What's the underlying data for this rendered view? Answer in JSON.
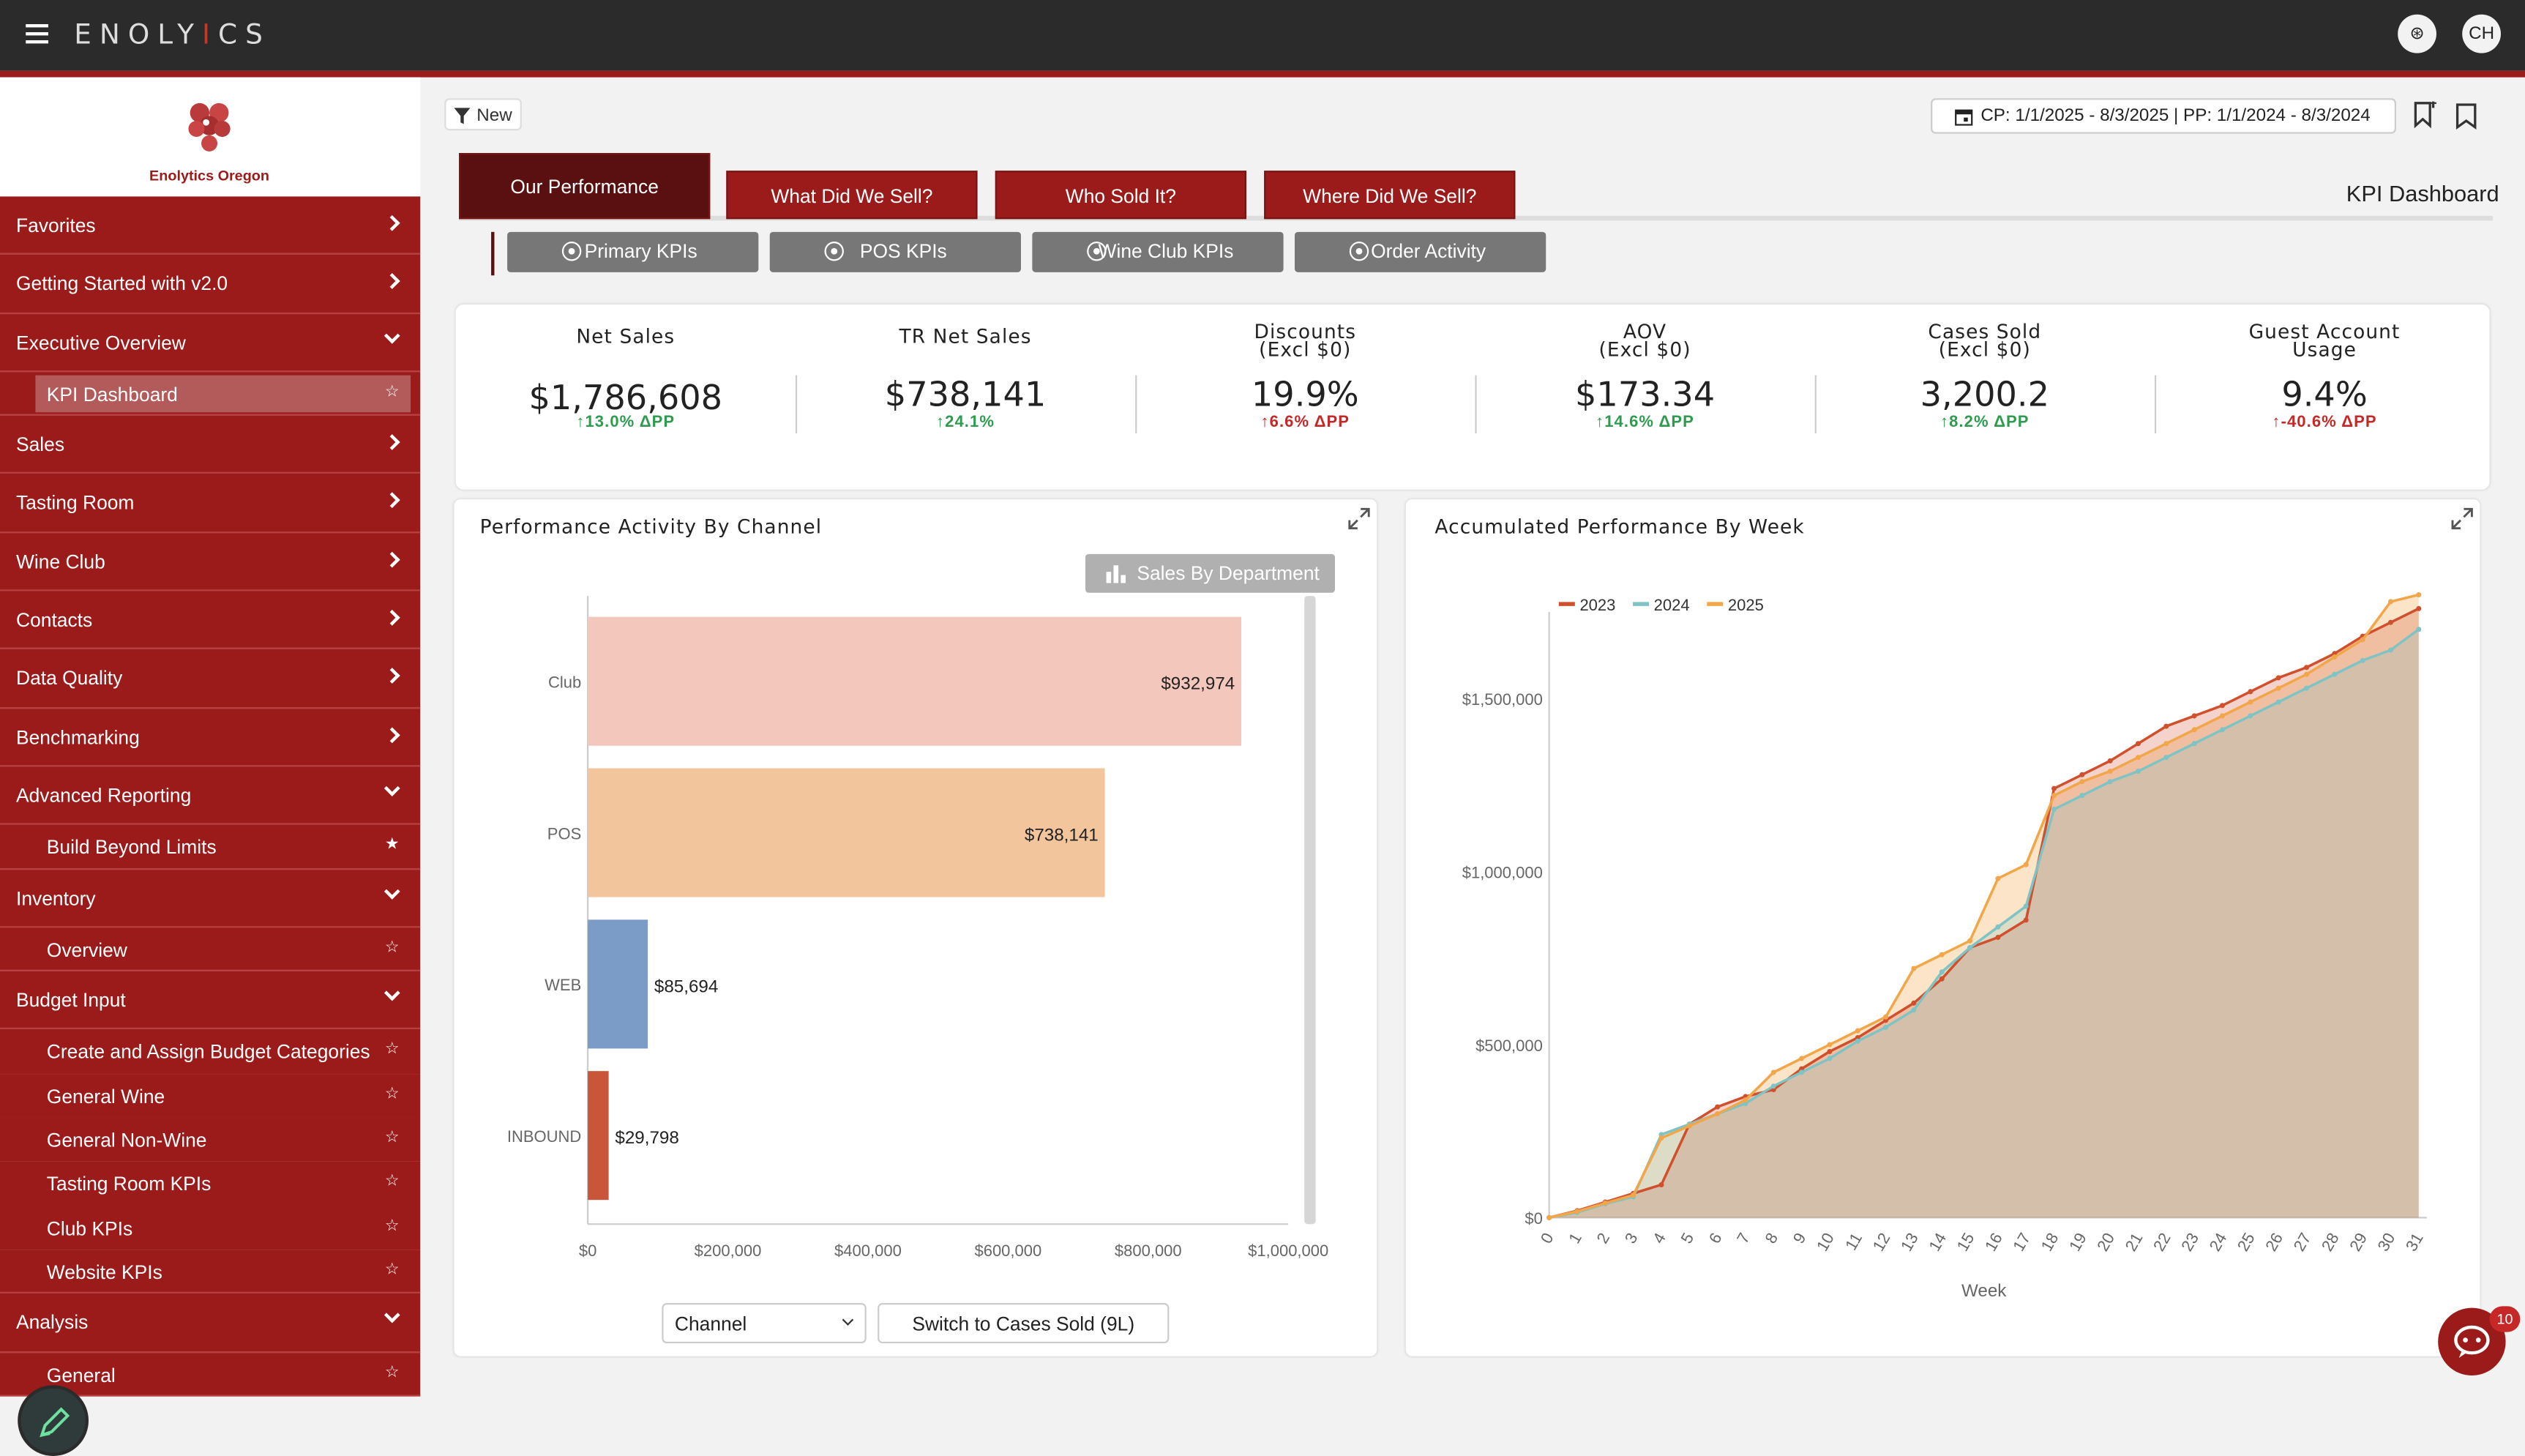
{
  "app": {
    "brand_pre": "ENOLY",
    "brand_i": "I",
    "brand_post": "CS",
    "user_initials": "CH",
    "org_name": "Enolytics Oregon"
  },
  "toolbar": {
    "filter_label": "New",
    "date_range": "CP: 1/1/2025 - 8/3/2025 | PP: 1/1/2024 - 8/3/2024"
  },
  "sidebar": {
    "items": [
      {
        "type": "item",
        "label": "Favorites",
        "chevron": "right"
      },
      {
        "type": "item",
        "label": "Getting Started with v2.0",
        "chevron": "right"
      },
      {
        "type": "item",
        "label": "Executive Overview",
        "chevron": "down"
      },
      {
        "type": "sub",
        "label": "KPI Dashboard",
        "active": true
      },
      {
        "type": "item",
        "label": "Sales",
        "chevron": "right"
      },
      {
        "type": "item",
        "label": "Tasting Room",
        "chevron": "right"
      },
      {
        "type": "item",
        "label": "Wine Club",
        "chevron": "right"
      },
      {
        "type": "item",
        "label": "Contacts",
        "chevron": "right"
      },
      {
        "type": "item",
        "label": "Data Quality",
        "chevron": "right"
      },
      {
        "type": "item",
        "label": "Benchmarking",
        "chevron": "right"
      },
      {
        "type": "item",
        "label": "Advanced Reporting",
        "chevron": "down"
      },
      {
        "type": "sub",
        "label": "Build Beyond Limits",
        "pinned": true
      },
      {
        "type": "item",
        "label": "Inventory",
        "chevron": "down"
      },
      {
        "type": "sub",
        "label": "Overview"
      },
      {
        "type": "item",
        "label": "Budget Input",
        "chevron": "down"
      },
      {
        "type": "sub",
        "label": "Create and Assign Budget Categories"
      },
      {
        "type": "sub",
        "label": "General Wine"
      },
      {
        "type": "sub",
        "label": "General Non-Wine"
      },
      {
        "type": "sub",
        "label": "Tasting Room KPIs"
      },
      {
        "type": "sub",
        "label": "Club KPIs"
      },
      {
        "type": "sub",
        "label": "Website KPIs"
      },
      {
        "type": "item",
        "label": "Analysis",
        "chevron": "down"
      },
      {
        "type": "sub",
        "label": "General"
      }
    ]
  },
  "tabs": [
    {
      "label": "Our Performance",
      "active": true
    },
    {
      "label": "What Did We Sell?"
    },
    {
      "label": "Who Sold It?"
    },
    {
      "label": "Where Did We Sell?"
    }
  ],
  "page_title": "KPI Dashboard",
  "subtabs": [
    "Primary KPIs",
    "POS KPIs",
    "Wine Club KPIs",
    "Order Activity"
  ],
  "kpis": [
    {
      "title": "Net Sales",
      "value": "$1,786,608",
      "delta": "↑13.0% ΔPP",
      "color": "green"
    },
    {
      "title": "TR Net Sales",
      "value": "$738,141",
      "delta": "↑24.1%",
      "color": "green"
    },
    {
      "title": "Discounts\n(Excl $0)",
      "value": "19.9%",
      "delta": "↑6.6% ΔPP",
      "color": "red"
    },
    {
      "title": "AOV\n(Excl $0)",
      "value": "$173.34",
      "delta": "↑14.6% ΔPP",
      "color": "green"
    },
    {
      "title": "Cases Sold\n(Excl $0)",
      "value": "3,200.2",
      "delta": "↑8.2% ΔPP",
      "color": "green"
    },
    {
      "title": "Guest Account\nUsage",
      "value": "9.4%",
      "delta": "↑-40.6% ΔPP",
      "color": "red"
    }
  ],
  "panel1": {
    "title": "Performance Activity By Channel",
    "dept_button": "Sales By Department",
    "select_value": "Channel",
    "switch_label": "Switch to Cases Sold (9L)"
  },
  "panel2": {
    "title": "Accumulated Performance By Week"
  },
  "chat_badge": "10",
  "chart_data": [
    {
      "type": "bar",
      "orientation": "horizontal",
      "title": "Performance Activity By Channel",
      "categories": [
        "Club",
        "POS",
        "WEB",
        "INBOUND"
      ],
      "values": [
        932974,
        738141,
        85694,
        29798
      ],
      "labels": [
        "$932,974",
        "$738,141",
        "$85,694",
        "$29,798"
      ],
      "colors": [
        "#f4c7bd",
        "#f3c59c",
        "#7a9cc6",
        "#c9553a"
      ],
      "xlim": [
        0,
        1000000
      ],
      "xticks": [
        "$0",
        "$200,000",
        "$400,000",
        "$600,000",
        "$800,000",
        "$1,000,000"
      ]
    },
    {
      "type": "line",
      "title": "Accumulated Performance By Week",
      "xlabel": "Week",
      "x": [
        0,
        1,
        2,
        3,
        4,
        5,
        6,
        7,
        8,
        9,
        10,
        11,
        12,
        13,
        14,
        15,
        16,
        17,
        18,
        19,
        20,
        21,
        22,
        23,
        24,
        25,
        26,
        27,
        28,
        29,
        30,
        31
      ],
      "ylim": [
        0,
        1750000
      ],
      "yticks": [
        {
          "v": 0,
          "t": "$0"
        },
        {
          "v": 500000,
          "t": "$500,000"
        },
        {
          "v": 1000000,
          "t": "$1,000,000"
        },
        {
          "v": 1500000,
          "t": "$1,500,000"
        }
      ],
      "legend": "top-left",
      "series": [
        {
          "name": "2023",
          "color": "#d0502e",
          "values": [
            0,
            20000,
            45000,
            70000,
            95000,
            270000,
            320000,
            350000,
            370000,
            430000,
            480000,
            520000,
            570000,
            620000,
            690000,
            780000,
            810000,
            860000,
            1240000,
            1280000,
            1320000,
            1370000,
            1420000,
            1450000,
            1480000,
            1520000,
            1560000,
            1590000,
            1630000,
            1680000,
            1720000,
            1760000
          ]
        },
        {
          "name": "2024",
          "color": "#7fc3c4",
          "values": [
            0,
            15000,
            40000,
            60000,
            240000,
            270000,
            300000,
            330000,
            380000,
            420000,
            460000,
            510000,
            550000,
            600000,
            710000,
            780000,
            840000,
            900000,
            1180000,
            1220000,
            1260000,
            1290000,
            1330000,
            1370000,
            1410000,
            1450000,
            1490000,
            1530000,
            1570000,
            1610000,
            1640000,
            1700000
          ]
        },
        {
          "name": "2025",
          "color": "#f2a64a",
          "values": [
            0,
            18000,
            42000,
            65000,
            230000,
            265000,
            300000,
            340000,
            420000,
            460000,
            500000,
            540000,
            580000,
            720000,
            760000,
            800000,
            980000,
            1020000,
            1220000,
            1260000,
            1290000,
            1330000,
            1370000,
            1410000,
            1450000,
            1490000,
            1530000,
            1570000,
            1620000,
            1670000,
            1780000,
            1800000
          ]
        }
      ]
    }
  ]
}
